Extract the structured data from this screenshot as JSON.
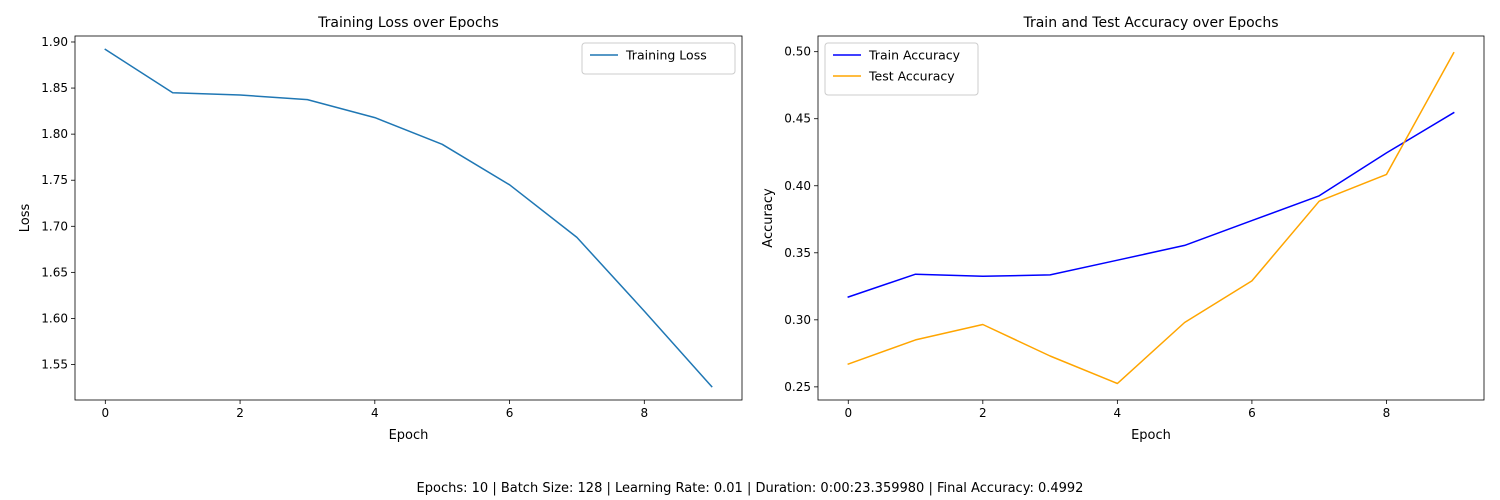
{
  "footer": "Epochs: 10 | Batch Size: 128 | Learning Rate: 0.01 | Duration: 0:00:23.359980 | Final Accuracy: 0.4992",
  "chart_data": [
    {
      "type": "line",
      "title": "Training Loss over Epochs",
      "xlabel": "Epoch",
      "ylabel": "Loss",
      "x": [
        0,
        1,
        2,
        3,
        4,
        5,
        6,
        7,
        8,
        9
      ],
      "xlim": [
        -0.45,
        9.45
      ],
      "ylim": [
        1.5115,
        1.9065
      ],
      "xticks": [
        0,
        2,
        4,
        6,
        8
      ],
      "yticks": [
        1.55,
        1.6,
        1.65,
        1.7,
        1.75,
        1.8,
        1.85,
        1.9
      ],
      "ytick_decimals": 2,
      "grid": false,
      "legend": "upper right",
      "series": [
        {
          "name": "Training Loss",
          "color": "#1f77b4",
          "values": [
            1.892,
            1.845,
            1.8425,
            1.8375,
            1.818,
            1.789,
            1.745,
            1.688,
            1.608,
            1.526
          ]
        }
      ]
    },
    {
      "type": "line",
      "title": "Train and Test Accuracy over Epochs",
      "xlabel": "Epoch",
      "ylabel": "Accuracy",
      "x": [
        0,
        1,
        2,
        3,
        4,
        5,
        6,
        7,
        8,
        9
      ],
      "xlim": [
        -0.45,
        9.45
      ],
      "ylim": [
        0.2402,
        0.5117
      ],
      "xticks": [
        0,
        2,
        4,
        6,
        8
      ],
      "yticks": [
        0.25,
        0.3,
        0.35,
        0.4,
        0.45,
        0.5
      ],
      "ytick_decimals": 2,
      "grid": false,
      "legend": "upper left",
      "series": [
        {
          "name": "Train Accuracy",
          "color": "#0000ff",
          "values": [
            0.317,
            0.334,
            0.3325,
            0.3335,
            0.3445,
            0.3555,
            0.374,
            0.3925,
            0.4245,
            0.4545
          ]
        },
        {
          "name": "Test Accuracy",
          "color": "#ffa500",
          "values": [
            0.267,
            0.285,
            0.2965,
            0.273,
            0.2525,
            0.298,
            0.329,
            0.3885,
            0.4085,
            0.4992
          ]
        }
      ]
    }
  ]
}
